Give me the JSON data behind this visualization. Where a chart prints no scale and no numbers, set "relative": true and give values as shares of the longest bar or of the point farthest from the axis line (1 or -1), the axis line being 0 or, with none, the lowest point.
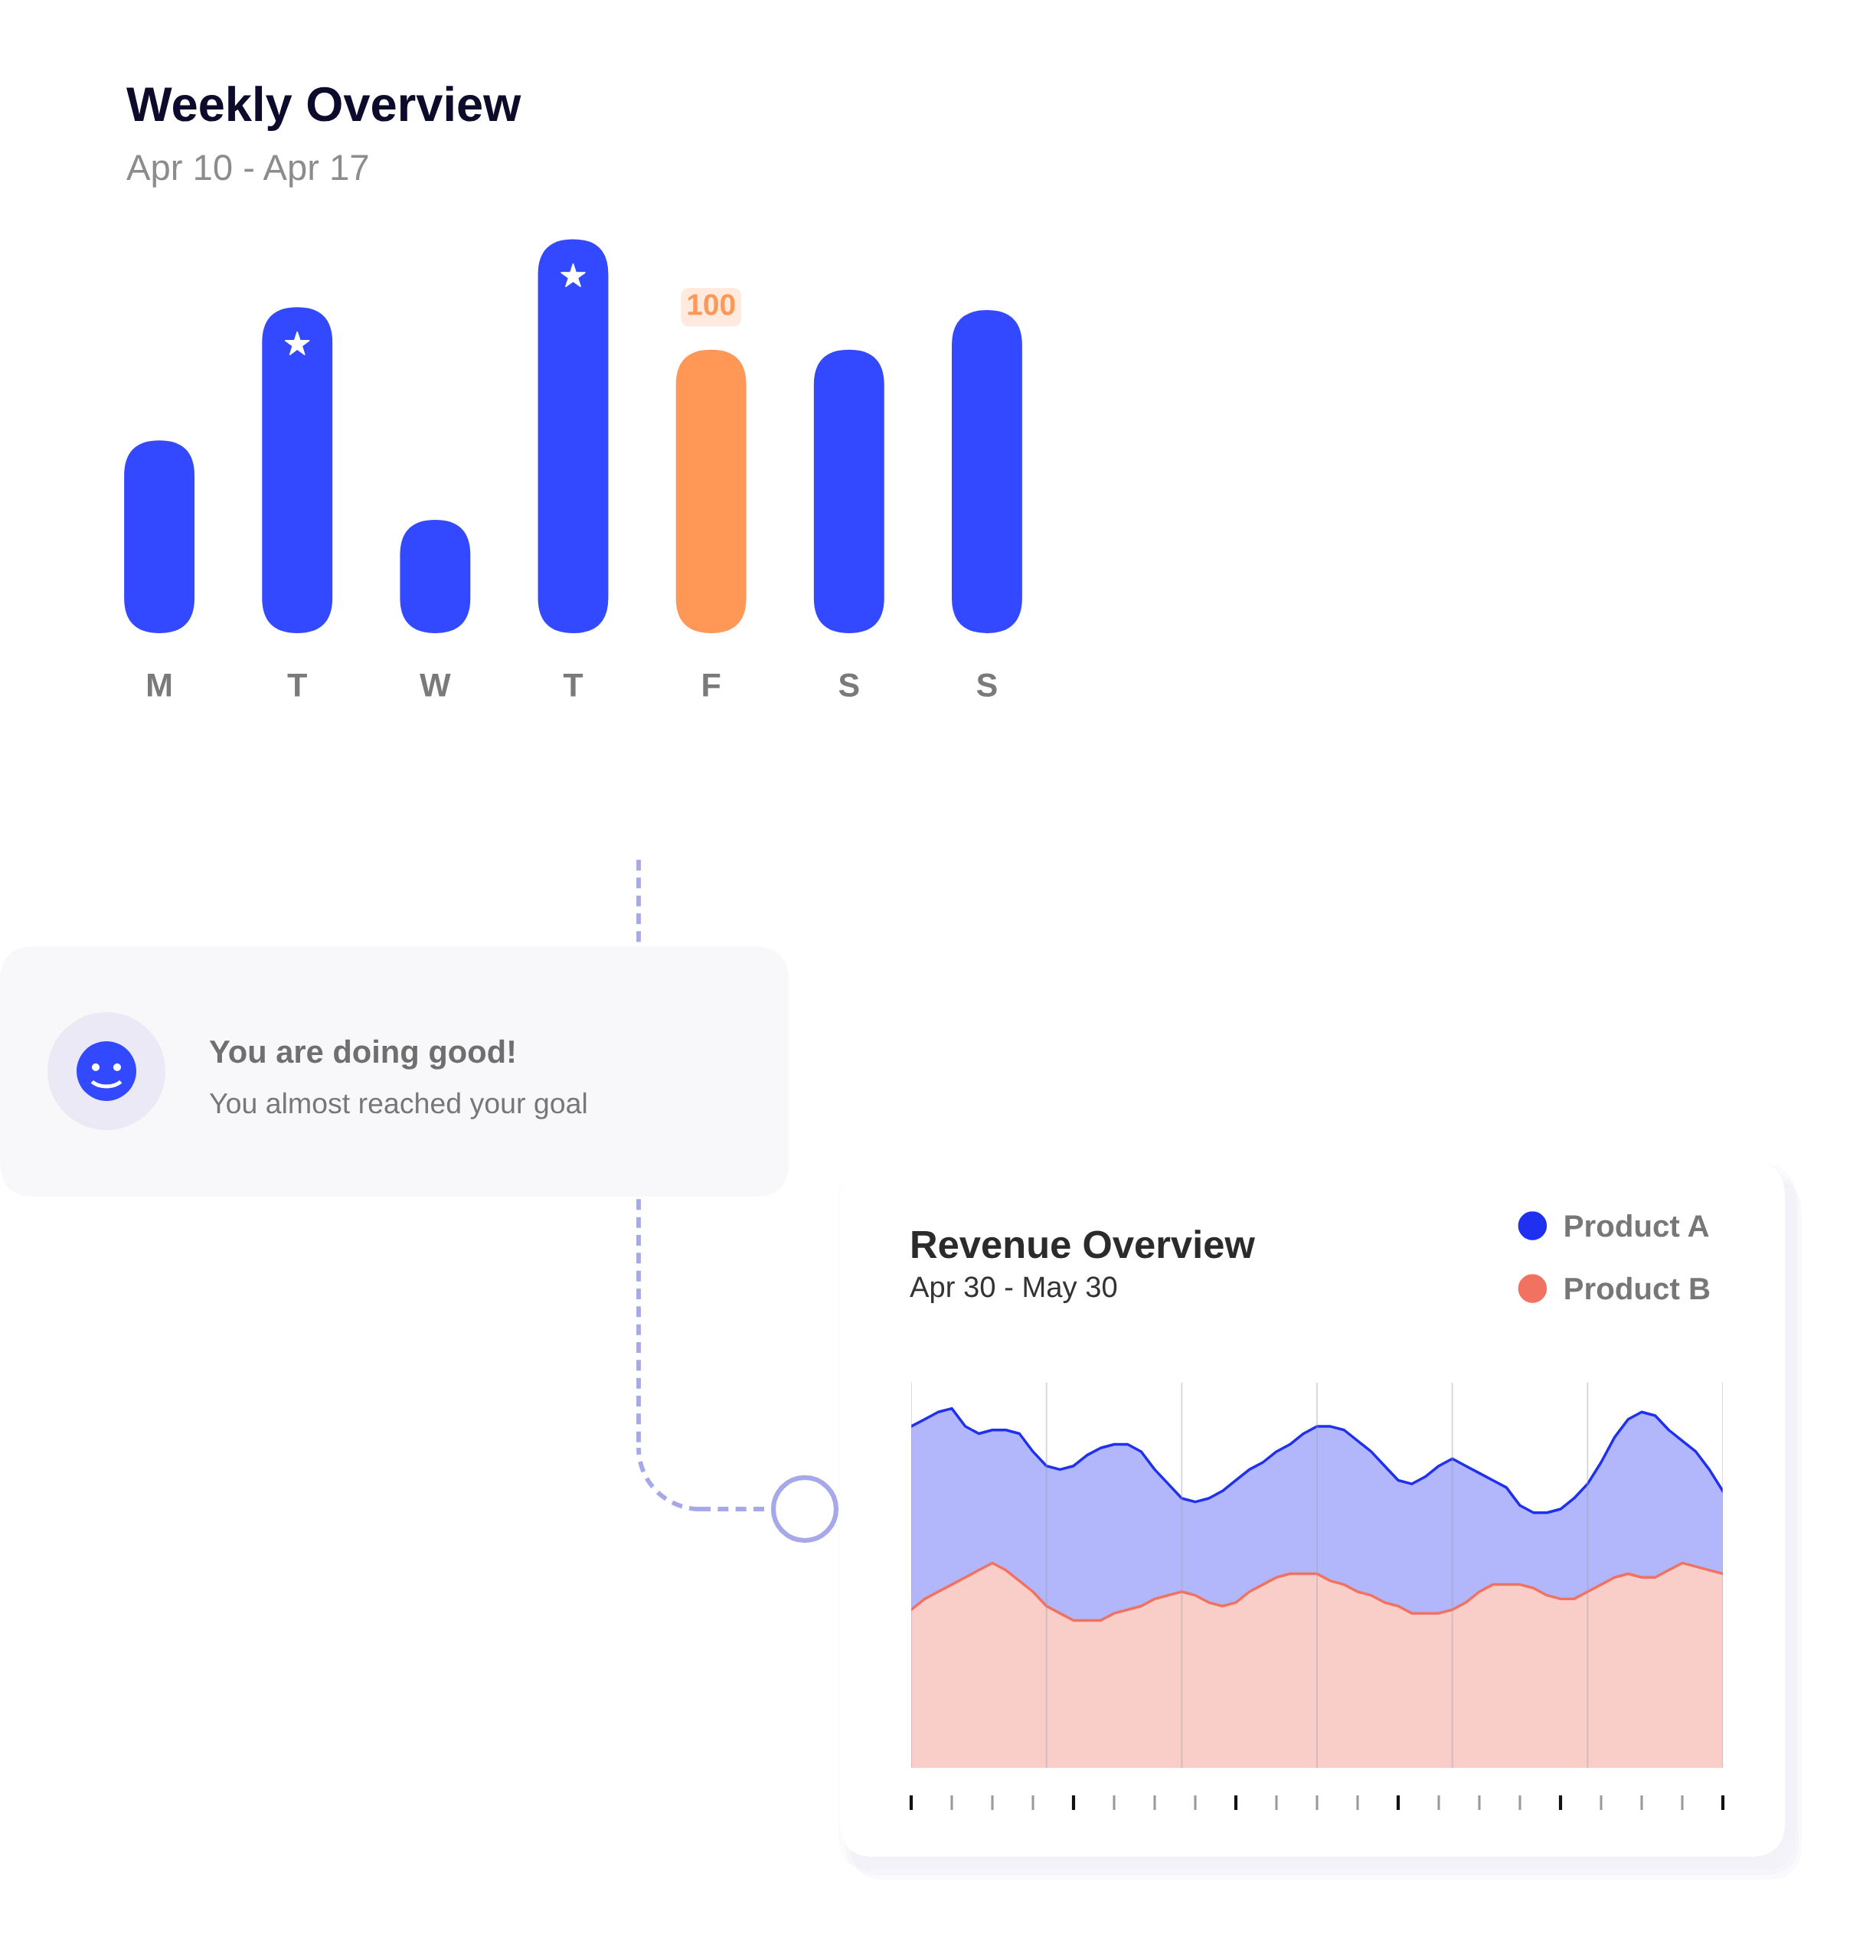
{
  "chart_data": [
    {
      "type": "bar",
      "title": "Weekly Overview",
      "subtitle": "Apr 10 - Apr 17",
      "categories": [
        "M",
        "T",
        "W",
        "T",
        "F",
        "S",
        "S"
      ],
      "values": [
        68,
        115,
        40,
        139,
        100,
        100,
        114
      ],
      "colors": [
        "#3349ff",
        "#3349ff",
        "#3349ff",
        "#3349ff",
        "#ff9757",
        "#3349ff",
        "#3349ff"
      ],
      "value_labels": [
        null,
        null,
        null,
        null,
        "100",
        null,
        null
      ],
      "tick_labels": "x"
    },
    {
      "type": "other",
      "title": "You are doing good!",
      "subtitle": "You almost reached your goal"
    },
    {
      "type": "area",
      "title": "Revenue Overview",
      "subtitle": "Apr 30 - May 30",
      "relative": true,
      "legend": "top right",
      "grid": "x",
      "tick_labels": false,
      "categories": [
        null,
        null,
        null,
        null,
        null,
        null,
        null,
        null,
        null,
        null,
        null,
        null,
        null,
        null,
        null,
        null,
        null,
        null,
        null,
        null,
        null,
        null,
        null,
        null,
        null,
        null,
        null,
        null,
        null,
        null,
        null,
        null,
        null,
        null,
        null,
        null,
        null,
        null,
        null,
        null,
        null,
        null,
        null,
        null,
        null,
        null,
        null,
        null,
        null,
        null,
        null,
        null,
        null,
        null,
        null,
        null,
        null,
        null,
        null,
        null,
        null
      ],
      "series": [
        {
          "name": "Product A",
          "color": "#1f30f0",
          "values": [
            0.95,
            0.97,
            0.99,
            1.0,
            0.95,
            0.93,
            0.94,
            0.94,
            0.93,
            0.88,
            0.84,
            0.83,
            0.84,
            0.87,
            0.89,
            0.9,
            0.9,
            0.88,
            0.83,
            0.79,
            0.75,
            0.74,
            0.75,
            0.77,
            0.8,
            0.83,
            0.85,
            0.88,
            0.9,
            0.93,
            0.95,
            0.95,
            0.94,
            0.91,
            0.88,
            0.84,
            0.8,
            0.79,
            0.81,
            0.84,
            0.86,
            0.84,
            0.82,
            0.8,
            0.78,
            0.73,
            0.71,
            0.71,
            0.72,
            0.75,
            0.79,
            0.85,
            0.92,
            0.97,
            0.99,
            0.98,
            0.94,
            0.91,
            0.88,
            0.83,
            0.77
          ]
        },
        {
          "name": "Product B",
          "color": "#f27262",
          "values": [
            0.44,
            0.47,
            0.49,
            0.51,
            0.53,
            0.55,
            0.57,
            0.55,
            0.52,
            0.49,
            0.45,
            0.43,
            0.41,
            0.41,
            0.41,
            0.43,
            0.44,
            0.45,
            0.47,
            0.48,
            0.49,
            0.48,
            0.46,
            0.45,
            0.46,
            0.49,
            0.51,
            0.53,
            0.54,
            0.54,
            0.54,
            0.52,
            0.51,
            0.49,
            0.48,
            0.46,
            0.45,
            0.43,
            0.43,
            0.43,
            0.44,
            0.46,
            0.49,
            0.51,
            0.51,
            0.51,
            0.5,
            0.48,
            0.47,
            0.47,
            0.49,
            0.51,
            0.53,
            0.54,
            0.53,
            0.53,
            0.55,
            0.57,
            0.56,
            0.55,
            0.54
          ]
        }
      ]
    }
  ]
}
